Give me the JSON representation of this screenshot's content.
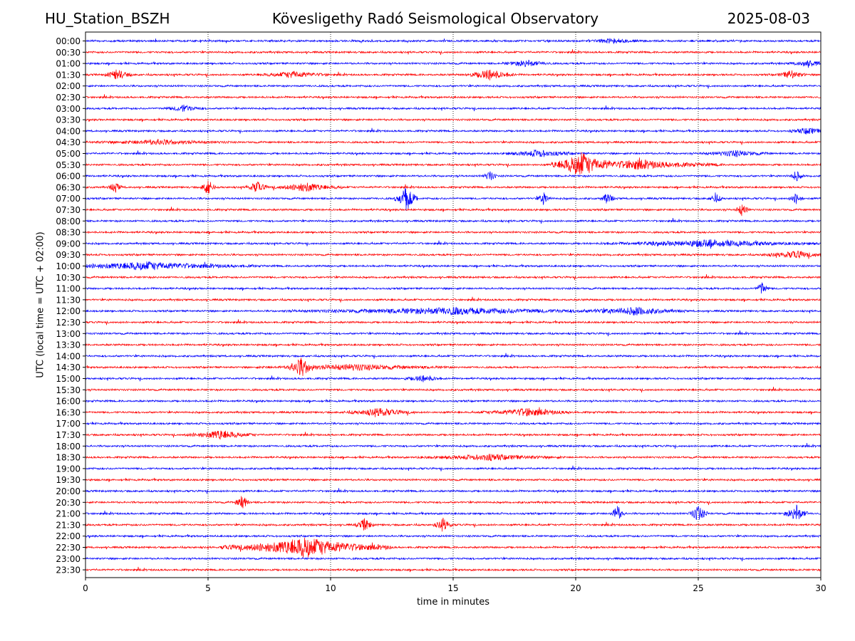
{
  "header": {
    "station": "HU_Station_BSZH",
    "observatory": "Kövesligethy Radó Seismological Observatory",
    "date": "2025-08-03"
  },
  "chart_data": {
    "type": "line",
    "title": "Kövesligethy Radó Seismological Observatory",
    "xlabel": "time in minutes",
    "ylabel": "UTC (local time = UTC + 02:00)",
    "xlim": [
      0,
      30
    ],
    "xticks": [
      "0",
      "5",
      "10",
      "15",
      "20",
      "25",
      "30"
    ],
    "vertical_gridlines_at": [
      5,
      10,
      15,
      20,
      25
    ],
    "row_labels": [
      "00:00",
      "00:30",
      "01:00",
      "01:30",
      "02:00",
      "02:30",
      "03:00",
      "03:30",
      "04:00",
      "04:30",
      "05:00",
      "05:30",
      "06:00",
      "06:30",
      "07:00",
      "07:30",
      "08:00",
      "08:30",
      "09:00",
      "09:30",
      "10:00",
      "10:30",
      "11:00",
      "11:30",
      "12:00",
      "12:30",
      "13:00",
      "13:30",
      "14:00",
      "14:30",
      "15:00",
      "15:30",
      "16:00",
      "16:30",
      "17:00",
      "17:30",
      "18:00",
      "18:30",
      "19:00",
      "19:30",
      "20:00",
      "20:30",
      "21:00",
      "21:30",
      "22:00",
      "22:30",
      "23:00",
      "23:30"
    ],
    "row_colors": [
      "#0000ff",
      "#ff0000"
    ],
    "events": [
      {
        "row": "00:00",
        "minute": 21.5,
        "width": 1.2,
        "amplitude": 0.2
      },
      {
        "row": "01:00",
        "minute": 18.0,
        "width": 1.0,
        "amplitude": 0.3
      },
      {
        "row": "01:00",
        "minute": 29.5,
        "width": 0.8,
        "amplitude": 0.3
      },
      {
        "row": "01:30",
        "minute": 1.3,
        "width": 0.6,
        "amplitude": 0.5
      },
      {
        "row": "01:30",
        "minute": 8.5,
        "width": 1.5,
        "amplitude": 0.3
      },
      {
        "row": "01:30",
        "minute": 16.5,
        "width": 1.0,
        "amplitude": 0.5
      },
      {
        "row": "01:30",
        "minute": 28.8,
        "width": 0.6,
        "amplitude": 0.4
      },
      {
        "row": "03:00",
        "minute": 4.0,
        "width": 0.8,
        "amplitude": 0.3
      },
      {
        "row": "04:00",
        "minute": 29.5,
        "width": 0.8,
        "amplitude": 0.3
      },
      {
        "row": "04:30",
        "minute": 3.0,
        "width": 3.0,
        "amplitude": 0.2
      },
      {
        "row": "05:00",
        "minute": 18.5,
        "width": 1.5,
        "amplitude": 0.3
      },
      {
        "row": "05:00",
        "minute": 26.5,
        "width": 1.5,
        "amplitude": 0.25
      },
      {
        "row": "05:30",
        "minute": 20.2,
        "width": 1.2,
        "amplitude": 1.1
      },
      {
        "row": "05:30",
        "minute": 22.5,
        "width": 3.5,
        "amplitude": 0.4
      },
      {
        "row": "06:00",
        "minute": 16.5,
        "width": 0.3,
        "amplitude": 0.5
      },
      {
        "row": "06:00",
        "minute": 29.0,
        "width": 0.3,
        "amplitude": 0.5
      },
      {
        "row": "06:30",
        "minute": 1.2,
        "width": 0.3,
        "amplitude": 0.5
      },
      {
        "row": "06:30",
        "minute": 5.0,
        "width": 0.3,
        "amplitude": 0.9
      },
      {
        "row": "06:30",
        "minute": 7.0,
        "width": 0.5,
        "amplitude": 0.5
      },
      {
        "row": "06:30",
        "minute": 9.0,
        "width": 1.5,
        "amplitude": 0.4
      },
      {
        "row": "07:00",
        "minute": 13.1,
        "width": 0.5,
        "amplitude": 1.2
      },
      {
        "row": "07:00",
        "minute": 18.7,
        "width": 0.3,
        "amplitude": 0.6
      },
      {
        "row": "07:00",
        "minute": 21.3,
        "width": 0.3,
        "amplitude": 0.6
      },
      {
        "row": "07:00",
        "minute": 25.7,
        "width": 0.3,
        "amplitude": 0.5
      },
      {
        "row": "07:00",
        "minute": 29.0,
        "width": 0.3,
        "amplitude": 0.5
      },
      {
        "row": "07:30",
        "minute": 26.8,
        "width": 0.3,
        "amplitude": 0.6
      },
      {
        "row": "09:00",
        "minute": 25.5,
        "width": 4.5,
        "amplitude": 0.3
      },
      {
        "row": "09:30",
        "minute": 29.0,
        "width": 1.5,
        "amplitude": 0.3
      },
      {
        "row": "10:00",
        "minute": 2.5,
        "width": 4.5,
        "amplitude": 0.35
      },
      {
        "row": "11:00",
        "minute": 27.6,
        "width": 0.3,
        "amplitude": 0.6
      },
      {
        "row": "12:00",
        "minute": 15.0,
        "width": 7.0,
        "amplitude": 0.3
      },
      {
        "row": "12:00",
        "minute": 22.5,
        "width": 2.0,
        "amplitude": 0.35
      },
      {
        "row": "14:30",
        "minute": 8.8,
        "width": 0.6,
        "amplitude": 0.8
      },
      {
        "row": "14:30",
        "minute": 11.0,
        "width": 4.0,
        "amplitude": 0.25
      },
      {
        "row": "15:00",
        "minute": 13.8,
        "width": 0.8,
        "amplitude": 0.3
      },
      {
        "row": "16:30",
        "minute": 12.0,
        "width": 1.5,
        "amplitude": 0.35
      },
      {
        "row": "16:30",
        "minute": 18.0,
        "width": 2.0,
        "amplitude": 0.35
      },
      {
        "row": "17:30",
        "minute": 5.5,
        "width": 1.5,
        "amplitude": 0.4
      },
      {
        "row": "18:30",
        "minute": 16.5,
        "width": 3.0,
        "amplitude": 0.25
      },
      {
        "row": "20:30",
        "minute": 6.4,
        "width": 0.3,
        "amplitude": 0.8
      },
      {
        "row": "21:00",
        "minute": 21.7,
        "width": 0.3,
        "amplitude": 0.8
      },
      {
        "row": "21:00",
        "minute": 25.0,
        "width": 0.4,
        "amplitude": 0.8
      },
      {
        "row": "21:00",
        "minute": 29.0,
        "width": 0.5,
        "amplitude": 0.8
      },
      {
        "row": "21:30",
        "minute": 11.4,
        "width": 0.4,
        "amplitude": 0.6
      },
      {
        "row": "21:30",
        "minute": 14.6,
        "width": 0.4,
        "amplitude": 0.6
      },
      {
        "row": "22:30",
        "minute": 9.0,
        "width": 3.5,
        "amplitude": 0.9
      }
    ],
    "grid": "vertical dotted"
  }
}
